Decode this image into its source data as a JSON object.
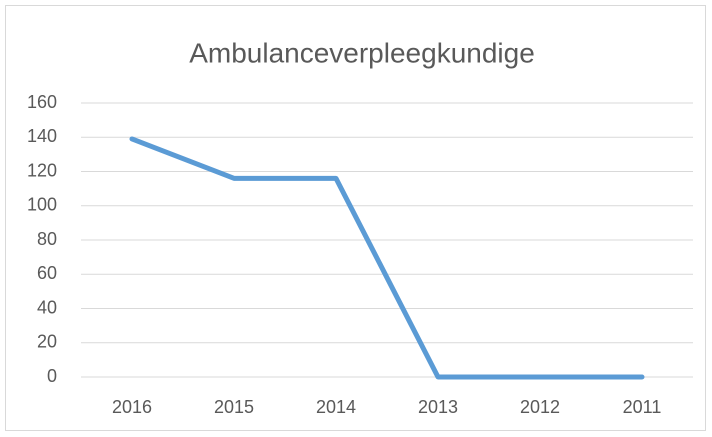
{
  "chart_data": {
    "type": "line",
    "title": "Ambulanceverpleegkundige",
    "categories": [
      "2016",
      "2015",
      "2014",
      "2013",
      "2012",
      "2011"
    ],
    "values": [
      139,
      116,
      116,
      0,
      0,
      0
    ],
    "color": "#5b9bd5",
    "ylim": [
      0,
      160
    ],
    "yticks": [
      0,
      20,
      40,
      60,
      80,
      100,
      120,
      140,
      160
    ],
    "grid": true
  }
}
